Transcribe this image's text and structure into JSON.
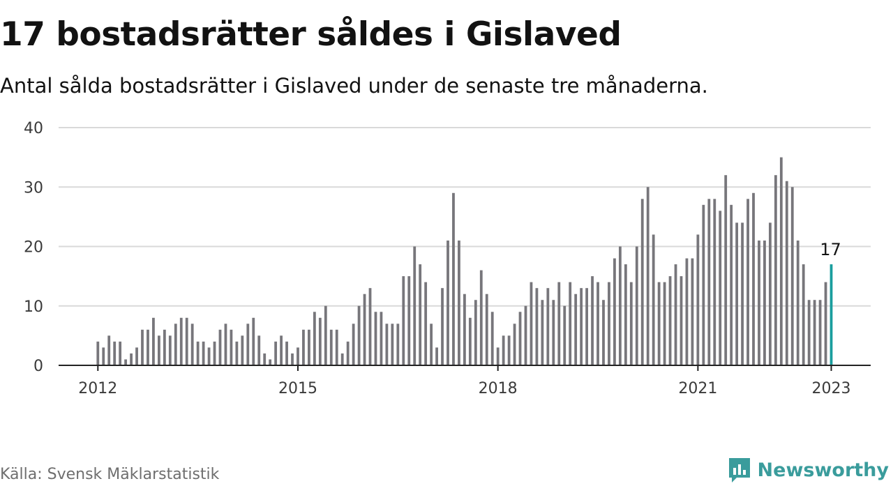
{
  "header": {
    "title": "17 bostadsrätter såldes i Gislaved",
    "subtitle": "Antal sålda bostadsrätter i Gislaved under de senaste tre månaderna."
  },
  "footer": {
    "source": "Källa: Svensk Mäklarstatistik",
    "brand": "Newsworthy",
    "brand_icon": "newsworthy-logo-icon"
  },
  "colors": {
    "bar": "#77767b",
    "highlight": "#1a9e9e",
    "grid": "#d9d9d9",
    "axis": "#222222",
    "brand": "#3a9c9c"
  },
  "chart_data": {
    "type": "bar",
    "title": "",
    "xlabel": "",
    "ylabel": "",
    "ylim": [
      0,
      40
    ],
    "yticks": [
      0,
      10,
      20,
      30,
      40
    ],
    "xticks": [
      "2012",
      "2015",
      "2018",
      "2021",
      "2023"
    ],
    "grid": true,
    "x_start": "2012-01",
    "x_end": "2023-01",
    "highlight_label": "17",
    "values": [
      4,
      3,
      5,
      4,
      4,
      1,
      2,
      3,
      6,
      6,
      8,
      5,
      6,
      5,
      7,
      8,
      8,
      7,
      4,
      4,
      3,
      4,
      6,
      7,
      6,
      4,
      5,
      7,
      8,
      5,
      2,
      1,
      4,
      5,
      4,
      2,
      3,
      6,
      6,
      9,
      8,
      10,
      6,
      6,
      2,
      4,
      7,
      10,
      12,
      13,
      9,
      9,
      7,
      7,
      7,
      15,
      15,
      20,
      17,
      14,
      7,
      3,
      13,
      21,
      29,
      21,
      12,
      8,
      11,
      16,
      12,
      9,
      3,
      5,
      5,
      7,
      9,
      10,
      14,
      13,
      11,
      13,
      11,
      14,
      10,
      14,
      12,
      13,
      13,
      15,
      14,
      11,
      14,
      18,
      20,
      17,
      14,
      20,
      28,
      30,
      22,
      14,
      14,
      15,
      17,
      15,
      18,
      18,
      22,
      27,
      28,
      28,
      26,
      32,
      27,
      24,
      24,
      28,
      29,
      21,
      21,
      24,
      32,
      35,
      31,
      30,
      21,
      17,
      11,
      11,
      11,
      14,
      17
    ]
  }
}
